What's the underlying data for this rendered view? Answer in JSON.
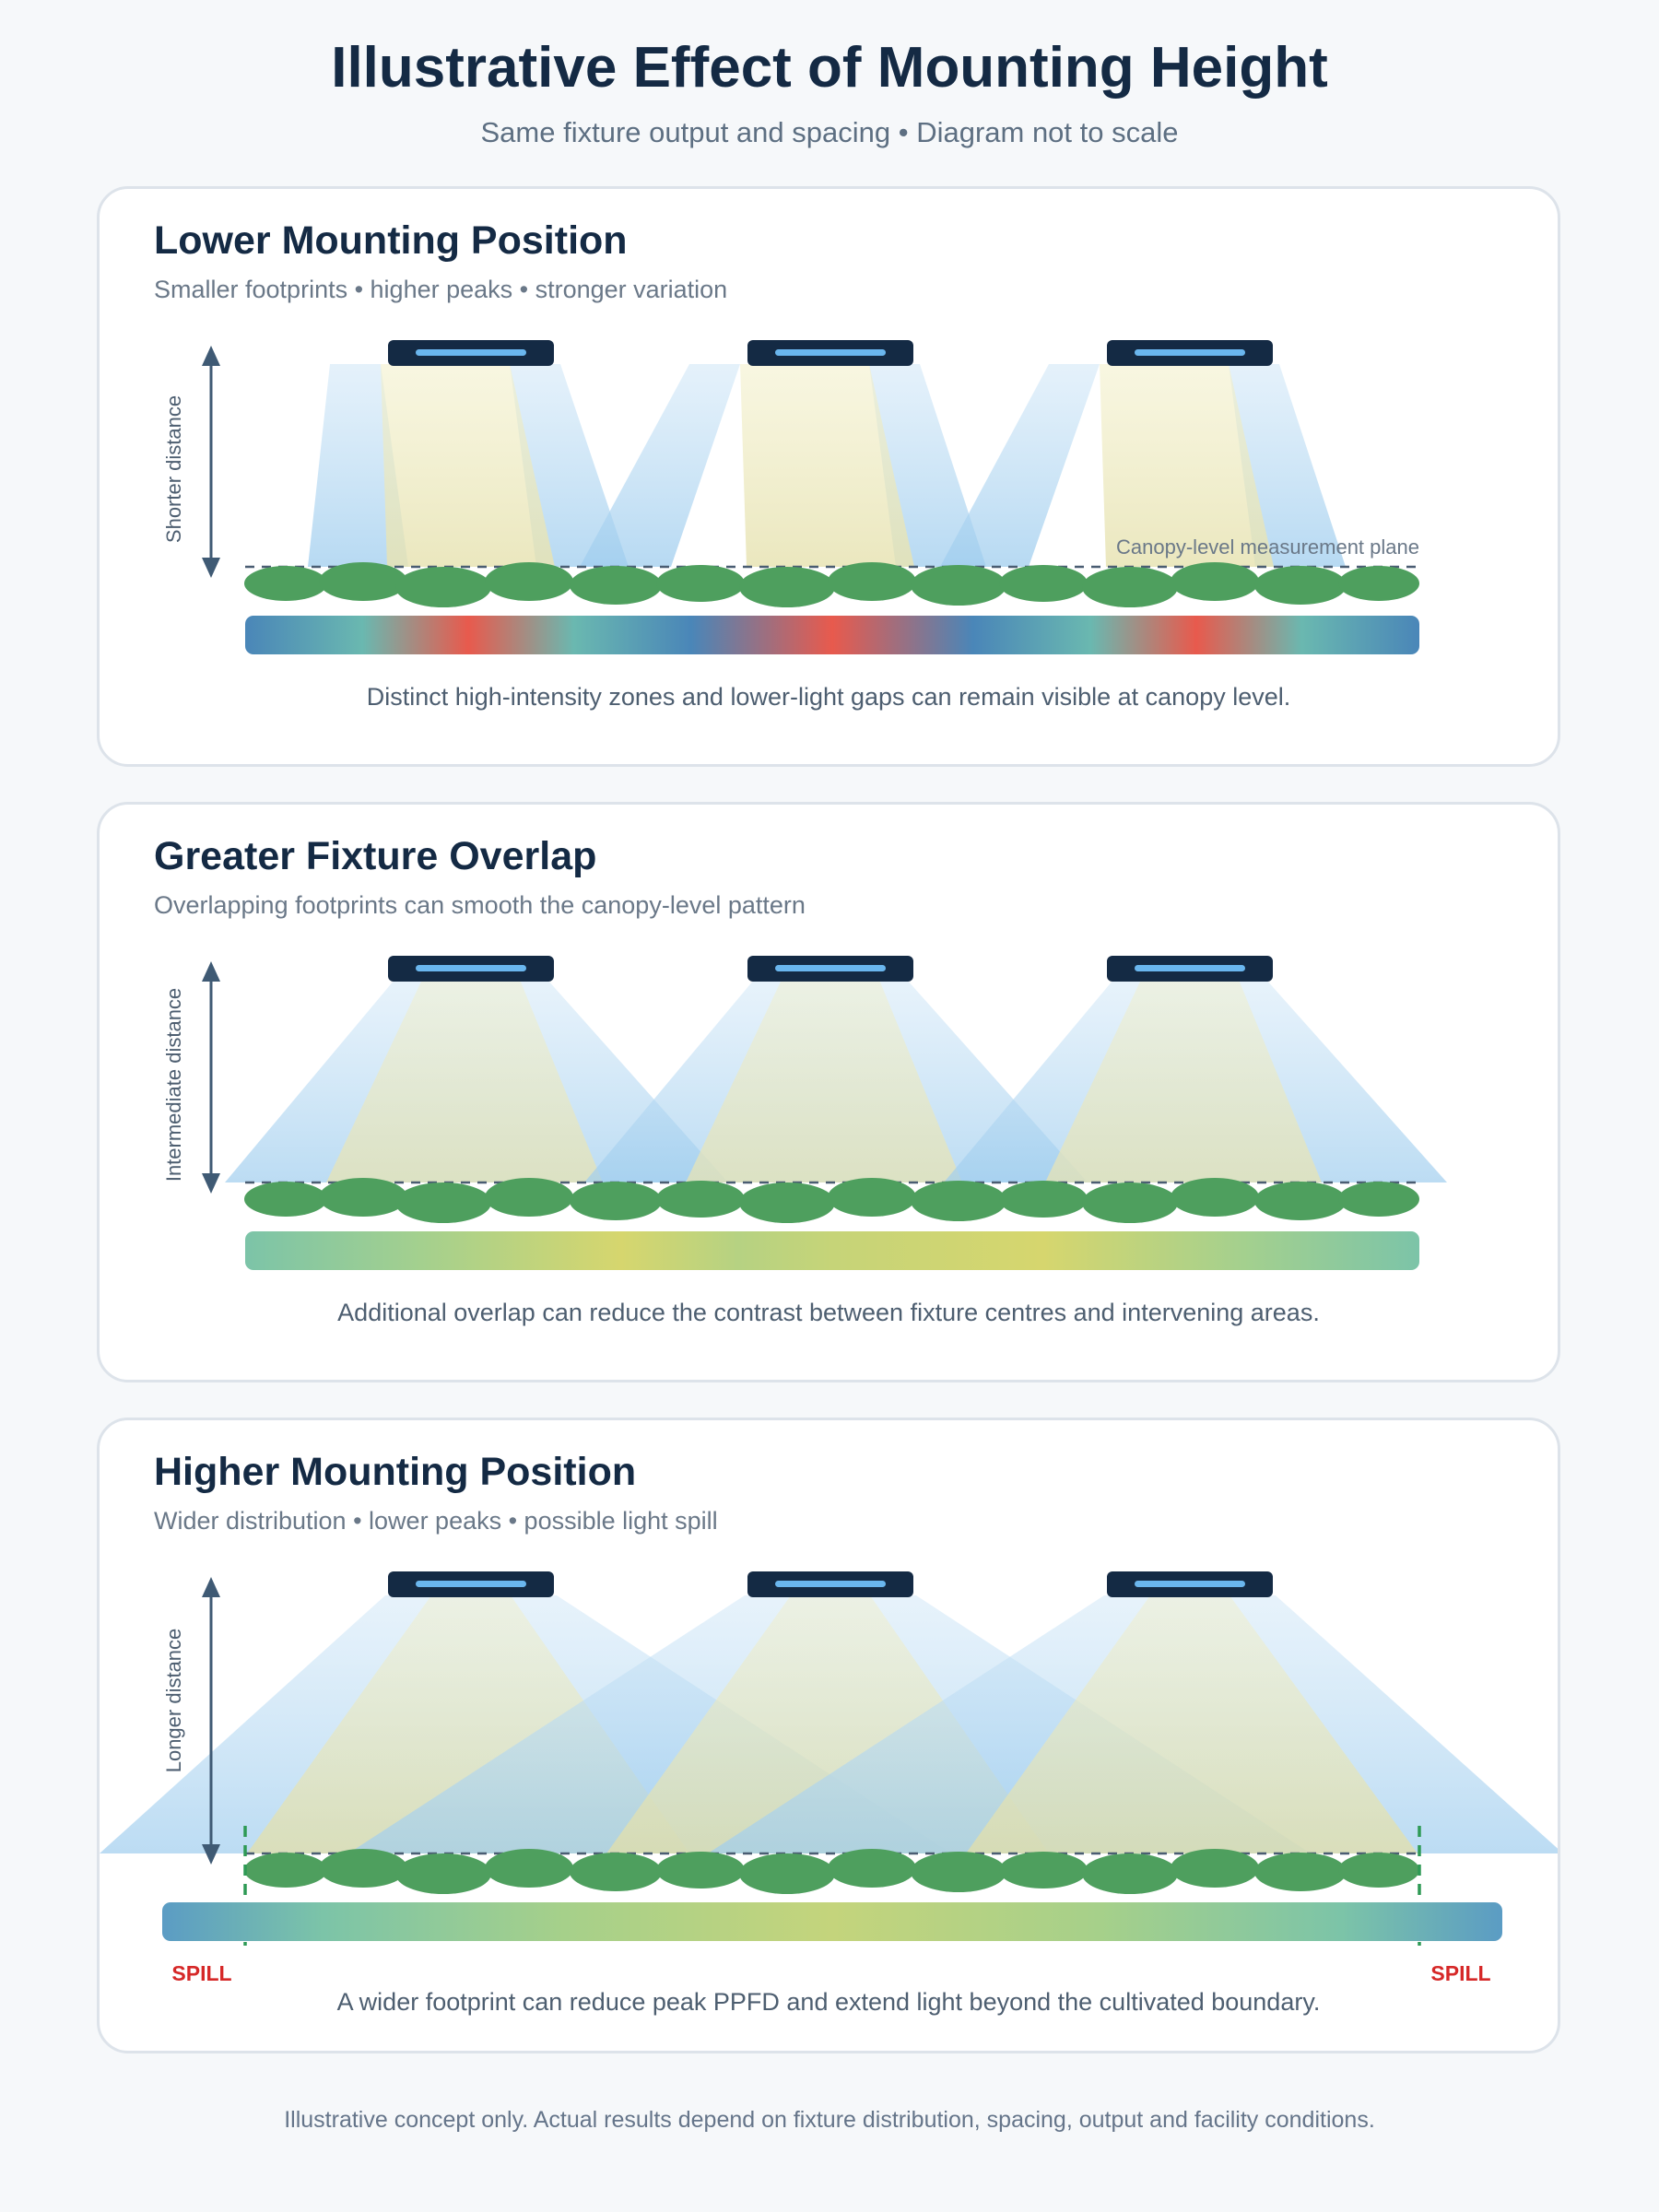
{
  "title": "Illustrative Effect of Mounting Height",
  "subtitle": "Same fixture output and spacing • Diagram not to scale",
  "panels": [
    {
      "title": "Lower Mounting Position",
      "subtitle": "Smaller footprints • higher peaks • stronger variation",
      "distance_label": "Shorter distance",
      "plane_label": "Canopy-level measurement plane",
      "caption": "Distinct high-intensity zones and lower-light gaps can remain visible at canopy level."
    },
    {
      "title": "Greater Fixture Overlap",
      "subtitle": "Overlapping footprints can smooth the canopy-level pattern",
      "distance_label": "Intermediate distance",
      "caption": "Additional overlap can reduce the contrast between fixture centres and intervening areas."
    },
    {
      "title": "Higher Mounting Position",
      "subtitle": "Wider distribution • lower peaks • possible light spill",
      "distance_label": "Longer distance",
      "spill_left": "SPILL",
      "spill_right": "SPILL",
      "caption": "A wider footprint can reduce peak PPFD and extend light beyond the cultivated boundary."
    }
  ],
  "footer": "Illustrative concept only. Actual results depend on fixture distribution, spacing, output and facility conditions.",
  "colors": {
    "navy": "#142a44",
    "beam": "#9fcdee",
    "core": "#ecebc0",
    "plant": "#4e9f5e",
    "spill": "#d62828",
    "boundary": "#2e9a55"
  }
}
